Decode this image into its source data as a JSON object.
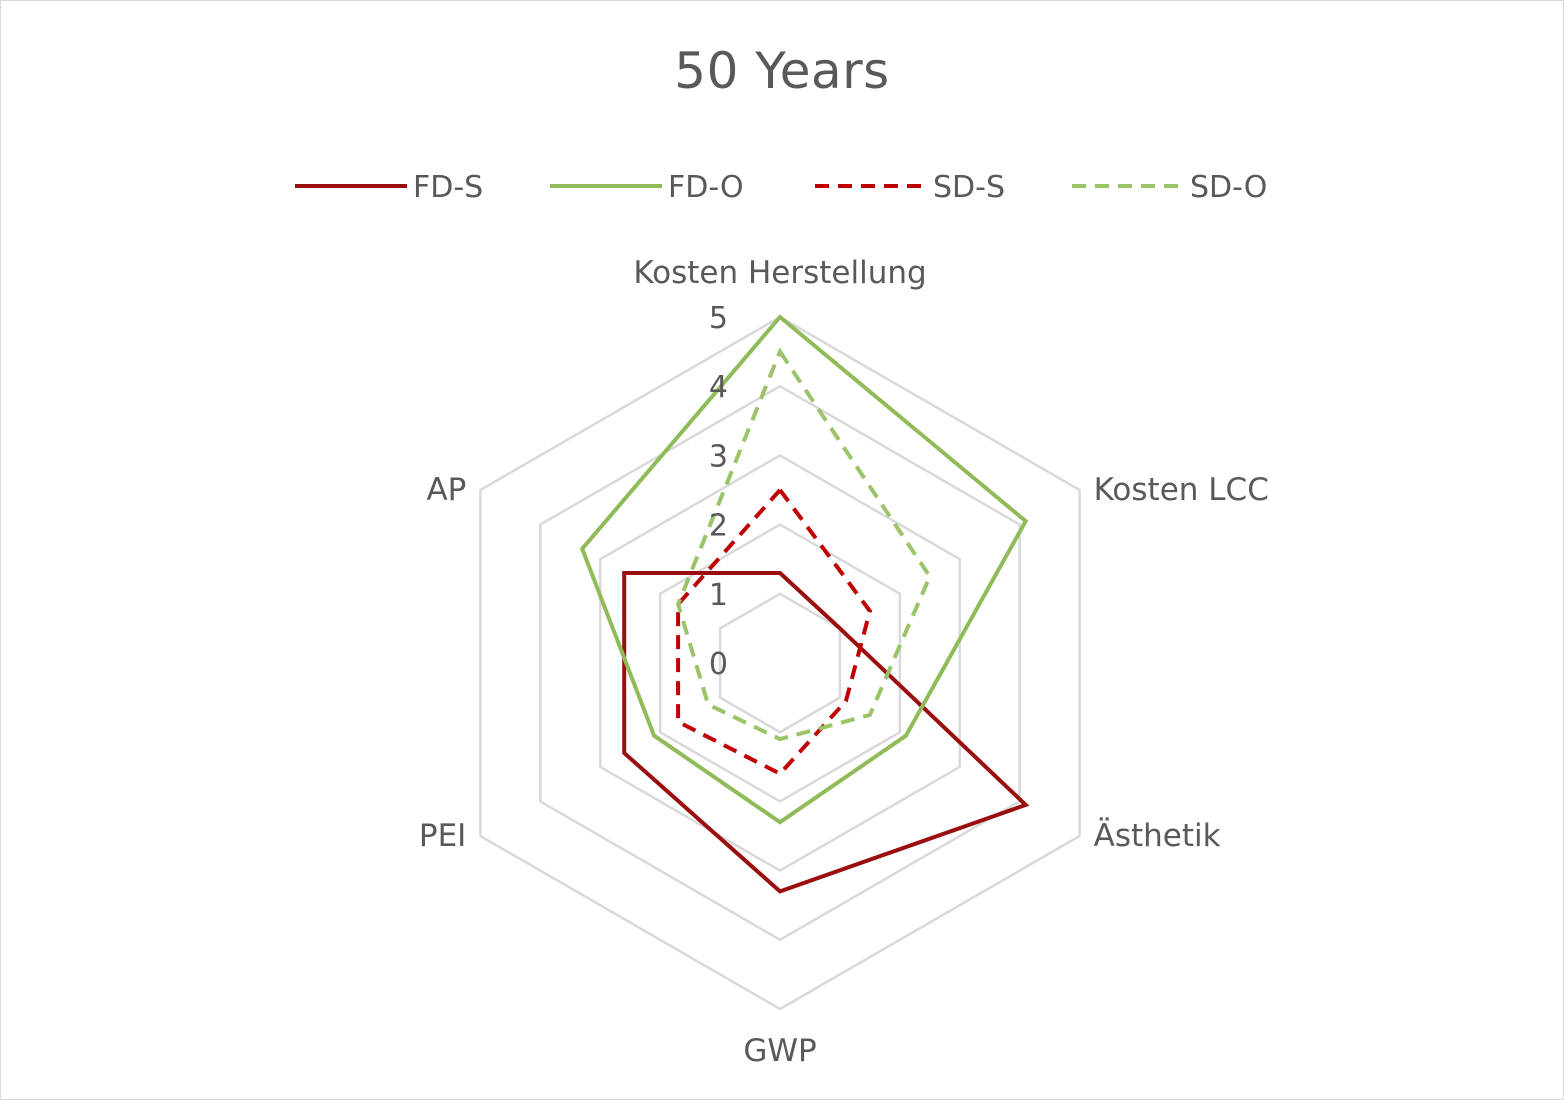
{
  "chart_data": {
    "type": "radar",
    "title": "50 Years",
    "axes": [
      "Kosten Herstellung",
      "Kosten LCC",
      "Ästhetik",
      "GWP",
      "PEI",
      "AP"
    ],
    "ticks": [
      "0",
      "1",
      "2",
      "3",
      "4",
      "5"
    ],
    "rlim": [
      0,
      5
    ],
    "grid": true,
    "legend_position": "top",
    "series": [
      {
        "name": "FD-S",
        "values": [
          1.3,
          1.0,
          4.1,
          3.3,
          2.6,
          2.6
        ],
        "color": "#9b0e0e",
        "dash": "solid"
      },
      {
        "name": "FD-O",
        "values": [
          5.0,
          4.1,
          2.1,
          2.3,
          2.1,
          3.3
        ],
        "color": "#8fbc59",
        "dash": "solid"
      },
      {
        "name": "SD-S",
        "values": [
          2.5,
          1.5,
          1.1,
          1.6,
          1.7,
          1.7
        ],
        "color": "#c00000",
        "dash": "dashed"
      },
      {
        "name": "SD-O",
        "values": [
          4.5,
          2.5,
          1.5,
          1.1,
          1.2,
          1.7
        ],
        "color": "#9bc368",
        "dash": "dashed"
      }
    ]
  }
}
